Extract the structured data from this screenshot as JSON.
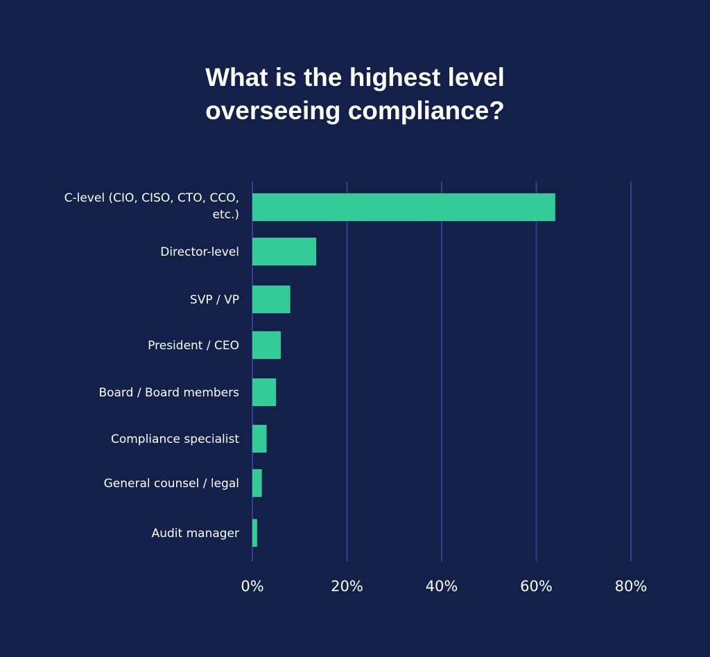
{
  "chart_data": {
    "type": "bar",
    "orientation": "horizontal",
    "title": "What is the highest level overseeing compliance?",
    "title_lines": [
      "What is the highest level",
      "overseeing compliance?"
    ],
    "categories": [
      [
        "C-level (CIO, CISO, CTO, CCO,",
        "etc.)"
      ],
      [
        "Director-level"
      ],
      [
        "SVP / VP"
      ],
      [
        "President / CEO"
      ],
      [
        "Board / Board members"
      ],
      [
        "Compliance specialist"
      ],
      [
        "General counsel / legal"
      ],
      [
        "Audit manager"
      ]
    ],
    "values": [
      64,
      13.5,
      8,
      6,
      5,
      3,
      2,
      1
    ],
    "xlim": [
      0,
      80
    ],
    "xticks": [
      0,
      20,
      40,
      60,
      80
    ],
    "xtick_labels": [
      "0%",
      "20%",
      "40%",
      "60%",
      "80%"
    ],
    "xlabel": "",
    "ylabel": "",
    "grid": "vertical",
    "colors": {
      "background": "#13214a",
      "bar": "#33cc99",
      "grid": "#3b3a94",
      "text": "#ffffff"
    }
  }
}
